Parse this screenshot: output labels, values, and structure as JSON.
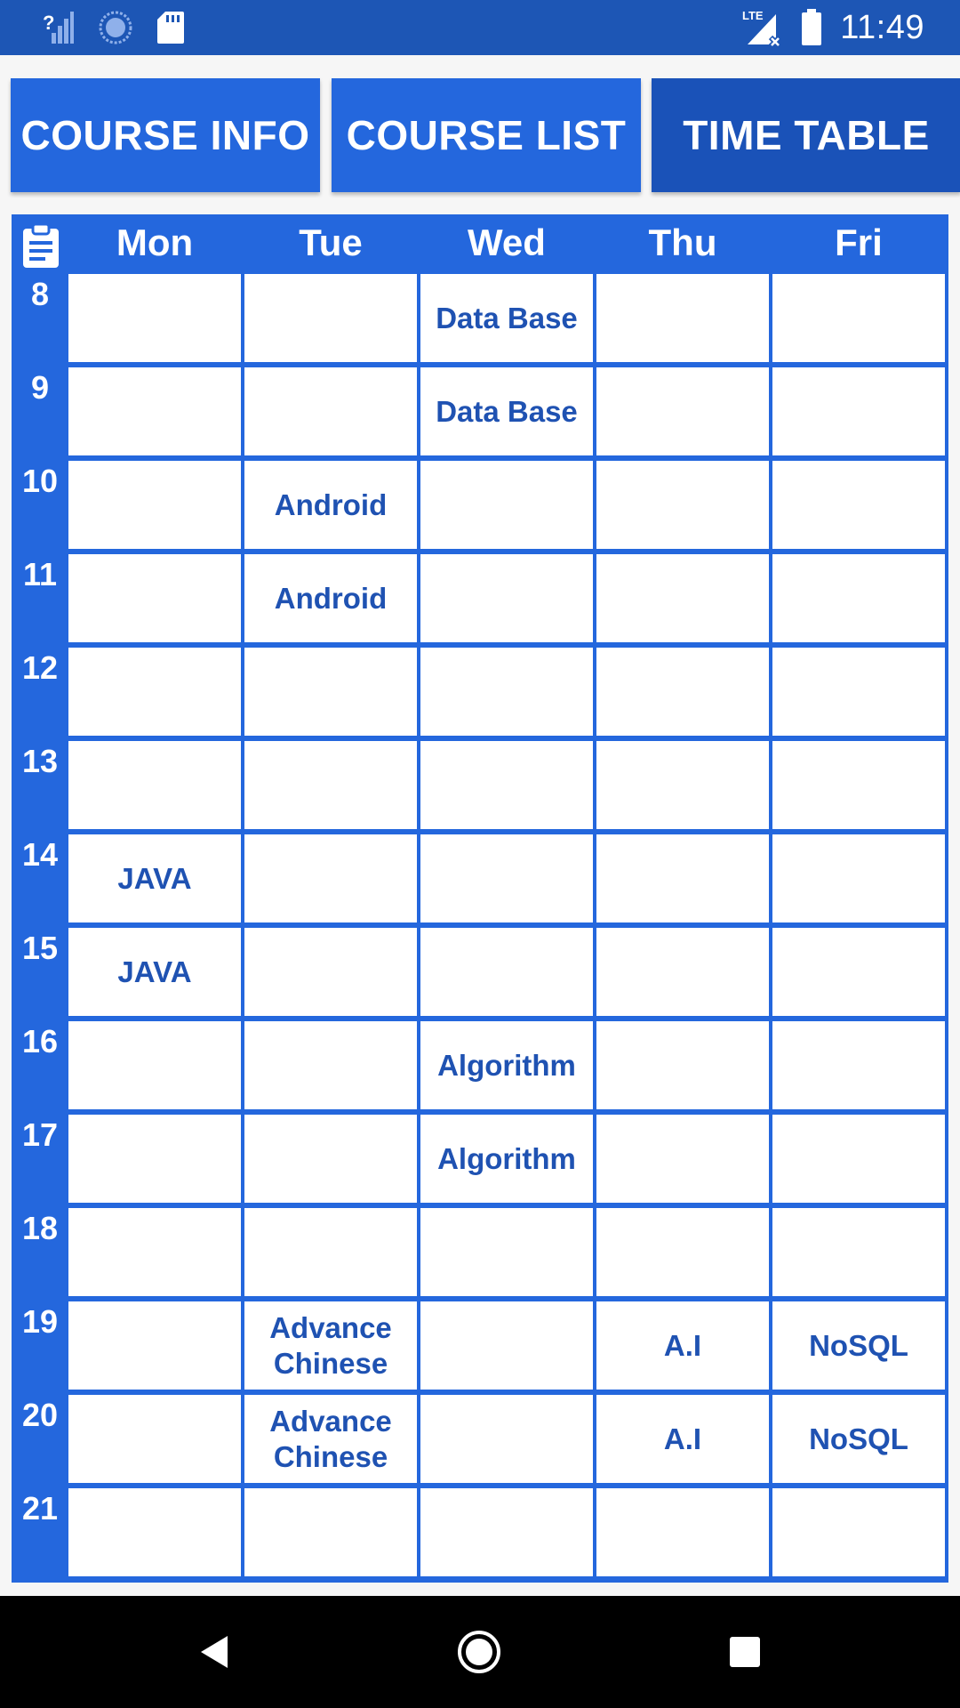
{
  "status_bar": {
    "time": "11:49",
    "icons": [
      "no-signal-icon",
      "sync-icon",
      "sd-card-icon",
      "lte-signal-icon",
      "battery-icon"
    ],
    "lte_label": "LTE"
  },
  "tabs": [
    {
      "label": "COURSE INFO",
      "active": false
    },
    {
      "label": "COURSE LIST",
      "active": false
    },
    {
      "label": "TIME TABLE",
      "active": true
    }
  ],
  "timetable": {
    "header_icon": "clipboard-icon",
    "days": [
      "Mon",
      "Tue",
      "Wed",
      "Thu",
      "Fri"
    ],
    "hours": [
      "8",
      "9",
      "10",
      "11",
      "12",
      "13",
      "14",
      "15",
      "16",
      "17",
      "18",
      "19",
      "20",
      "21"
    ],
    "rows": [
      [
        "",
        "",
        "Data Base",
        "",
        ""
      ],
      [
        "",
        "",
        "Data Base",
        "",
        ""
      ],
      [
        "",
        "Android",
        "",
        "",
        ""
      ],
      [
        "",
        "Android",
        "",
        "",
        ""
      ],
      [
        "",
        "",
        "",
        "",
        ""
      ],
      [
        "",
        "",
        "",
        "",
        ""
      ],
      [
        "JAVA",
        "",
        "",
        "",
        ""
      ],
      [
        "JAVA",
        "",
        "",
        "",
        ""
      ],
      [
        "",
        "",
        "Algorithm",
        "",
        ""
      ],
      [
        "",
        "",
        "Algorithm",
        "",
        ""
      ],
      [
        "",
        "",
        "",
        "",
        ""
      ],
      [
        "",
        "Advance\nChinese",
        "",
        "A.I",
        "NoSQL"
      ],
      [
        "",
        "Advance\nChinese",
        "",
        "A.I",
        "NoSQL"
      ],
      [
        "",
        "",
        "",
        "",
        ""
      ]
    ]
  },
  "nav_bar": {
    "icons": [
      "back-icon",
      "home-icon",
      "recents-icon"
    ]
  },
  "colors": {
    "primary": "#2467dd",
    "primary_dark": "#1a52b8",
    "status_bar": "#1d56b5",
    "cell_text": "#1f52b2"
  }
}
